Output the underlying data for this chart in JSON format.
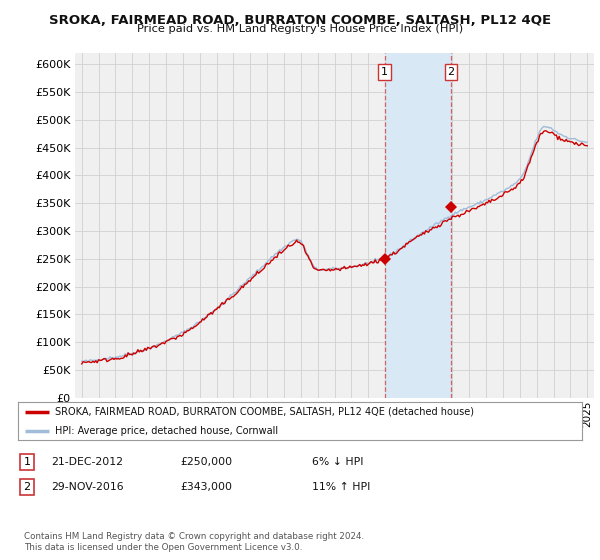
{
  "title": "SROKA, FAIRMEAD ROAD, BURRATON COOMBE, SALTASH, PL12 4QE",
  "subtitle": "Price paid vs. HM Land Registry's House Price Index (HPI)",
  "legend_line1": "SROKA, FAIRMEAD ROAD, BURRATON COOMBE, SALTASH, PL12 4QE (detached house)",
  "legend_line2": "HPI: Average price, detached house, Cornwall",
  "note1_num": "1",
  "note1_date": "21-DEC-2012",
  "note1_price": "£250,000",
  "note1_hpi": "6% ↓ HPI",
  "note2_num": "2",
  "note2_date": "29-NOV-2016",
  "note2_price": "£343,000",
  "note2_hpi": "11% ↑ HPI",
  "footer": "Contains HM Land Registry data © Crown copyright and database right 2024.\nThis data is licensed under the Open Government Licence v3.0.",
  "hpi_color": "#a0bcd8",
  "price_color": "#cc0000",
  "marker_color": "#cc0000",
  "bg_color": "#ffffff",
  "plot_bg_color": "#f0f0f0",
  "shade_color": "#d8e8f5",
  "ylim": [
    0,
    620000
  ],
  "yticks": [
    0,
    50000,
    100000,
    150000,
    200000,
    250000,
    300000,
    350000,
    400000,
    450000,
    500000,
    550000,
    600000
  ],
  "sale1_x": 2012.97,
  "sale1_y": 250000,
  "sale2_x": 2016.91,
  "sale2_y": 343000,
  "shade_x1": 2012.97,
  "shade_x2": 2016.91,
  "xlim_left": 1994.6,
  "xlim_right": 2025.4
}
